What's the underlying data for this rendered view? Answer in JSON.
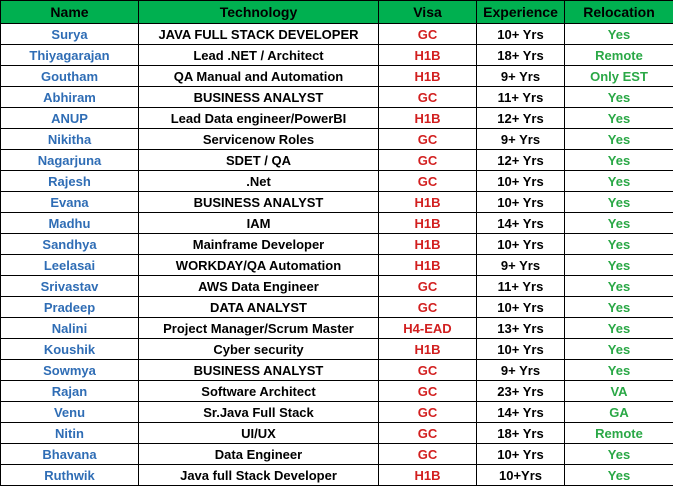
{
  "header": {
    "name": "Name",
    "technology": "Technology",
    "visa": "Visa",
    "experience": "Experience",
    "relocation": "Relocation"
  },
  "rows": [
    {
      "name": "Surya",
      "technology": "JAVA FULL STACK DEVELOPER",
      "visa": "GC",
      "experience": "10+ Yrs",
      "relocation": "Yes"
    },
    {
      "name": "Thiyagarajan",
      "technology": "Lead .NET / Architect",
      "visa": "H1B",
      "experience": "18+ Yrs",
      "relocation": "Remote"
    },
    {
      "name": "Goutham",
      "technology": "QA Manual and Automation",
      "visa": "H1B",
      "experience": "9+ Yrs",
      "relocation": "Only EST"
    },
    {
      "name": "Abhiram",
      "technology": "BUSINESS ANALYST",
      "visa": "GC",
      "experience": "11+ Yrs",
      "relocation": "Yes"
    },
    {
      "name": "ANUP",
      "technology": "Lead Data engineer/PowerBI",
      "visa": "H1B",
      "experience": "12+ Yrs",
      "relocation": "Yes"
    },
    {
      "name": "Nikitha",
      "technology": "Servicenow Roles",
      "visa": "GC",
      "experience": "9+ Yrs",
      "relocation": "Yes"
    },
    {
      "name": "Nagarjuna",
      "technology": "SDET / QA",
      "visa": "GC",
      "experience": "12+ Yrs",
      "relocation": "Yes"
    },
    {
      "name": "Rajesh",
      "technology": ".Net",
      "visa": "GC",
      "experience": "10+ Yrs",
      "relocation": "Yes"
    },
    {
      "name": "Evana",
      "technology": "BUSINESS ANALYST",
      "visa": "H1B",
      "experience": "10+ Yrs",
      "relocation": "Yes"
    },
    {
      "name": "Madhu",
      "technology": "IAM",
      "visa": "H1B",
      "experience": "14+ Yrs",
      "relocation": "Yes"
    },
    {
      "name": "Sandhya",
      "technology": "Mainframe Developer",
      "visa": "H1B",
      "experience": "10+ Yrs",
      "relocation": "Yes"
    },
    {
      "name": "Leelasai",
      "technology": "WORKDAY/QA Automation",
      "visa": "H1B",
      "experience": "9+ Yrs",
      "relocation": "Yes"
    },
    {
      "name": "Srivastav",
      "technology": "AWS Data Engineer",
      "visa": "GC",
      "experience": "11+ Yrs",
      "relocation": "Yes"
    },
    {
      "name": "Pradeep",
      "technology": "DATA ANALYST",
      "visa": "GC",
      "experience": "10+ Yrs",
      "relocation": "Yes"
    },
    {
      "name": "Nalini",
      "technology": "Project Manager/Scrum Master",
      "visa": "H4-EAD",
      "experience": "13+ Yrs",
      "relocation": "Yes"
    },
    {
      "name": "Koushik",
      "technology": "Cyber security",
      "visa": "H1B",
      "experience": "10+ Yrs",
      "relocation": "Yes"
    },
    {
      "name": "Sowmya",
      "technology": "BUSINESS ANALYST",
      "visa": "GC",
      "experience": "9+ Yrs",
      "relocation": "Yes"
    },
    {
      "name": "Rajan",
      "technology": "Software Architect",
      "visa": "GC",
      "experience": "23+ Yrs",
      "relocation": "VA"
    },
    {
      "name": "Venu",
      "technology": "Sr.Java Full Stack",
      "visa": "GC",
      "experience": "14+ Yrs",
      "relocation": "GA"
    },
    {
      "name": "Nitin",
      "technology": "UI/UX",
      "visa": "GC",
      "experience": "18+ Yrs",
      "relocation": "Remote"
    },
    {
      "name": "Bhavana",
      "technology": "Data Engineer",
      "visa": "GC",
      "experience": "10+ Yrs",
      "relocation": "Yes"
    },
    {
      "name": "Ruthwik",
      "technology": "Java full Stack Developer",
      "visa": "H1B",
      "experience": "10+Yrs",
      "relocation": "Yes"
    }
  ],
  "colors": {
    "header_bg": "#00b050",
    "name_text": "#2f6db5",
    "visa_text": "#d21f1f",
    "relocation_text": "#2aa846"
  }
}
